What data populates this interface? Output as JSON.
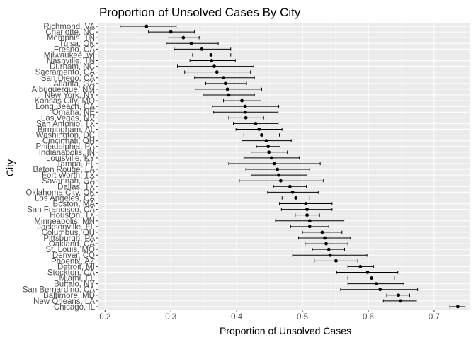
{
  "chart_data": {
    "type": "scatter",
    "title": "Proportion of Unsolved Cases By City",
    "xlabel": "Proportion of Unsolved Cases",
    "ylabel": "City",
    "xlim": [
      0.19,
      0.755
    ],
    "xticks": [
      0.2,
      0.3,
      0.4,
      0.5,
      0.6,
      0.7
    ],
    "xtick_labels": [
      "0.2",
      "0.3",
      "0.4",
      "0.5",
      "0.6",
      "0.7"
    ],
    "grid": true,
    "has_error_bars": true,
    "colors": {
      "panel": "#EBEBEB",
      "grid_major": "#FFFFFF",
      "grid_minor": "#F5F5F5",
      "point": "#000000"
    },
    "points": [
      {
        "city": "Richmond, VA",
        "estimate": 0.263,
        "lower": 0.223,
        "upper": 0.308
      },
      {
        "city": "Charlotte, NC",
        "estimate": 0.3,
        "lower": 0.266,
        "upper": 0.336
      },
      {
        "city": "Memphis, TN",
        "estimate": 0.319,
        "lower": 0.297,
        "upper": 0.343
      },
      {
        "city": "Tulsa, OK",
        "estimate": 0.331,
        "lower": 0.293,
        "upper": 0.372
      },
      {
        "city": "Fresno, CA",
        "estimate": 0.347,
        "lower": 0.305,
        "upper": 0.391
      },
      {
        "city": "Milwaukee, wI",
        "estimate": 0.361,
        "lower": 0.333,
        "upper": 0.391
      },
      {
        "city": "Nashville, TN",
        "estimate": 0.362,
        "lower": 0.329,
        "upper": 0.398
      },
      {
        "city": "Durham, NC",
        "estimate": 0.366,
        "lower": 0.31,
        "upper": 0.426
      },
      {
        "city": "Sacramento, CA",
        "estimate": 0.37,
        "lower": 0.321,
        "upper": 0.421
      },
      {
        "city": "San Diego, CA",
        "estimate": 0.38,
        "lower": 0.336,
        "upper": 0.427
      },
      {
        "city": "Atlanta, GA",
        "estimate": 0.383,
        "lower": 0.353,
        "upper": 0.415
      },
      {
        "city": "Albuquerque, NM",
        "estimate": 0.386,
        "lower": 0.337,
        "upper": 0.438
      },
      {
        "city": "New York, NY",
        "estimate": 0.388,
        "lower": 0.349,
        "upper": 0.427
      },
      {
        "city": "Kansas City, MO",
        "estimate": 0.408,
        "lower": 0.38,
        "upper": 0.437
      },
      {
        "city": "Long Beach, CA",
        "estimate": 0.413,
        "lower": 0.363,
        "upper": 0.464
      },
      {
        "city": "Omaha, NE",
        "estimate": 0.413,
        "lower": 0.365,
        "upper": 0.463
      },
      {
        "city": "Las Vegas, NV",
        "estimate": 0.414,
        "lower": 0.388,
        "upper": 0.441
      },
      {
        "city": "San Antonio, TX",
        "estimate": 0.429,
        "lower": 0.395,
        "upper": 0.463
      },
      {
        "city": "Birmingham, AL",
        "estimate": 0.434,
        "lower": 0.399,
        "upper": 0.469
      },
      {
        "city": "Washington, DC",
        "estimate": 0.438,
        "lower": 0.411,
        "upper": 0.465
      },
      {
        "city": "Cincinnati, OH",
        "estimate": 0.445,
        "lower": 0.408,
        "upper": 0.483
      },
      {
        "city": "Philadelphia, PA",
        "estimate": 0.448,
        "lower": 0.43,
        "upper": 0.466
      },
      {
        "city": "Indianapolis, IN",
        "estimate": 0.449,
        "lower": 0.422,
        "upper": 0.477
      },
      {
        "city": "Louisville, KY",
        "estimate": 0.453,
        "lower": 0.411,
        "upper": 0.495
      },
      {
        "city": "Tampa, FL",
        "estimate": 0.457,
        "lower": 0.388,
        "upper": 0.527
      },
      {
        "city": "Baton Rouge, LA",
        "estimate": 0.462,
        "lower": 0.414,
        "upper": 0.511
      },
      {
        "city": "Fort Worth, TX",
        "estimate": 0.464,
        "lower": 0.422,
        "upper": 0.507
      },
      {
        "city": "Savannah, GA",
        "estimate": 0.467,
        "lower": 0.404,
        "upper": 0.532
      },
      {
        "city": "Dallas, TX",
        "estimate": 0.481,
        "lower": 0.456,
        "upper": 0.506
      },
      {
        "city": "Oklahoma City, OK",
        "estimate": 0.485,
        "lower": 0.447,
        "upper": 0.524
      },
      {
        "city": "Los Angeles, CA",
        "estimate": 0.49,
        "lower": 0.469,
        "upper": 0.511
      },
      {
        "city": "Boston, MA",
        "estimate": 0.505,
        "lower": 0.465,
        "upper": 0.545
      },
      {
        "city": "San Francisco, CA",
        "estimate": 0.507,
        "lower": 0.468,
        "upper": 0.545
      },
      {
        "city": "Houston, TX",
        "estimate": 0.507,
        "lower": 0.489,
        "upper": 0.526
      },
      {
        "city": "Minneapolis, MN",
        "estimate": 0.511,
        "lower": 0.459,
        "upper": 0.563
      },
      {
        "city": "Jacksonville, FL",
        "estimate": 0.511,
        "lower": 0.482,
        "upper": 0.54
      },
      {
        "city": "Columbus, OH",
        "estimate": 0.53,
        "lower": 0.5,
        "upper": 0.56
      },
      {
        "city": "Pittsburgh, PA",
        "estimate": 0.534,
        "lower": 0.494,
        "upper": 0.573
      },
      {
        "city": "Oakland, CA",
        "estimate": 0.536,
        "lower": 0.504,
        "upper": 0.569
      },
      {
        "city": "St. Louis, MO",
        "estimate": 0.54,
        "lower": 0.515,
        "upper": 0.564
      },
      {
        "city": "Denver, CO",
        "estimate": 0.542,
        "lower": 0.485,
        "upper": 0.598
      },
      {
        "city": "Phoenix, AZ",
        "estimate": 0.551,
        "lower": 0.518,
        "upper": 0.584
      },
      {
        "city": "Detroit, MI",
        "estimate": 0.588,
        "lower": 0.569,
        "upper": 0.608
      },
      {
        "city": "Stockton, CA",
        "estimate": 0.599,
        "lower": 0.552,
        "upper": 0.645
      },
      {
        "city": "Miami, FL",
        "estimate": 0.605,
        "lower": 0.569,
        "upper": 0.64
      },
      {
        "city": "Buffalo, NY",
        "estimate": 0.612,
        "lower": 0.569,
        "upper": 0.654
      },
      {
        "city": "San Bernardino, CA",
        "estimate": 0.618,
        "lower": 0.558,
        "upper": 0.675
      },
      {
        "city": "Baltimore, MD",
        "estimate": 0.646,
        "lower": 0.628,
        "upper": 0.663
      },
      {
        "city": "New Orleans, LA",
        "estimate": 0.649,
        "lower": 0.623,
        "upper": 0.673
      },
      {
        "city": "Chicago, IL",
        "estimate": 0.736,
        "lower": 0.724,
        "upper": 0.747
      }
    ]
  }
}
